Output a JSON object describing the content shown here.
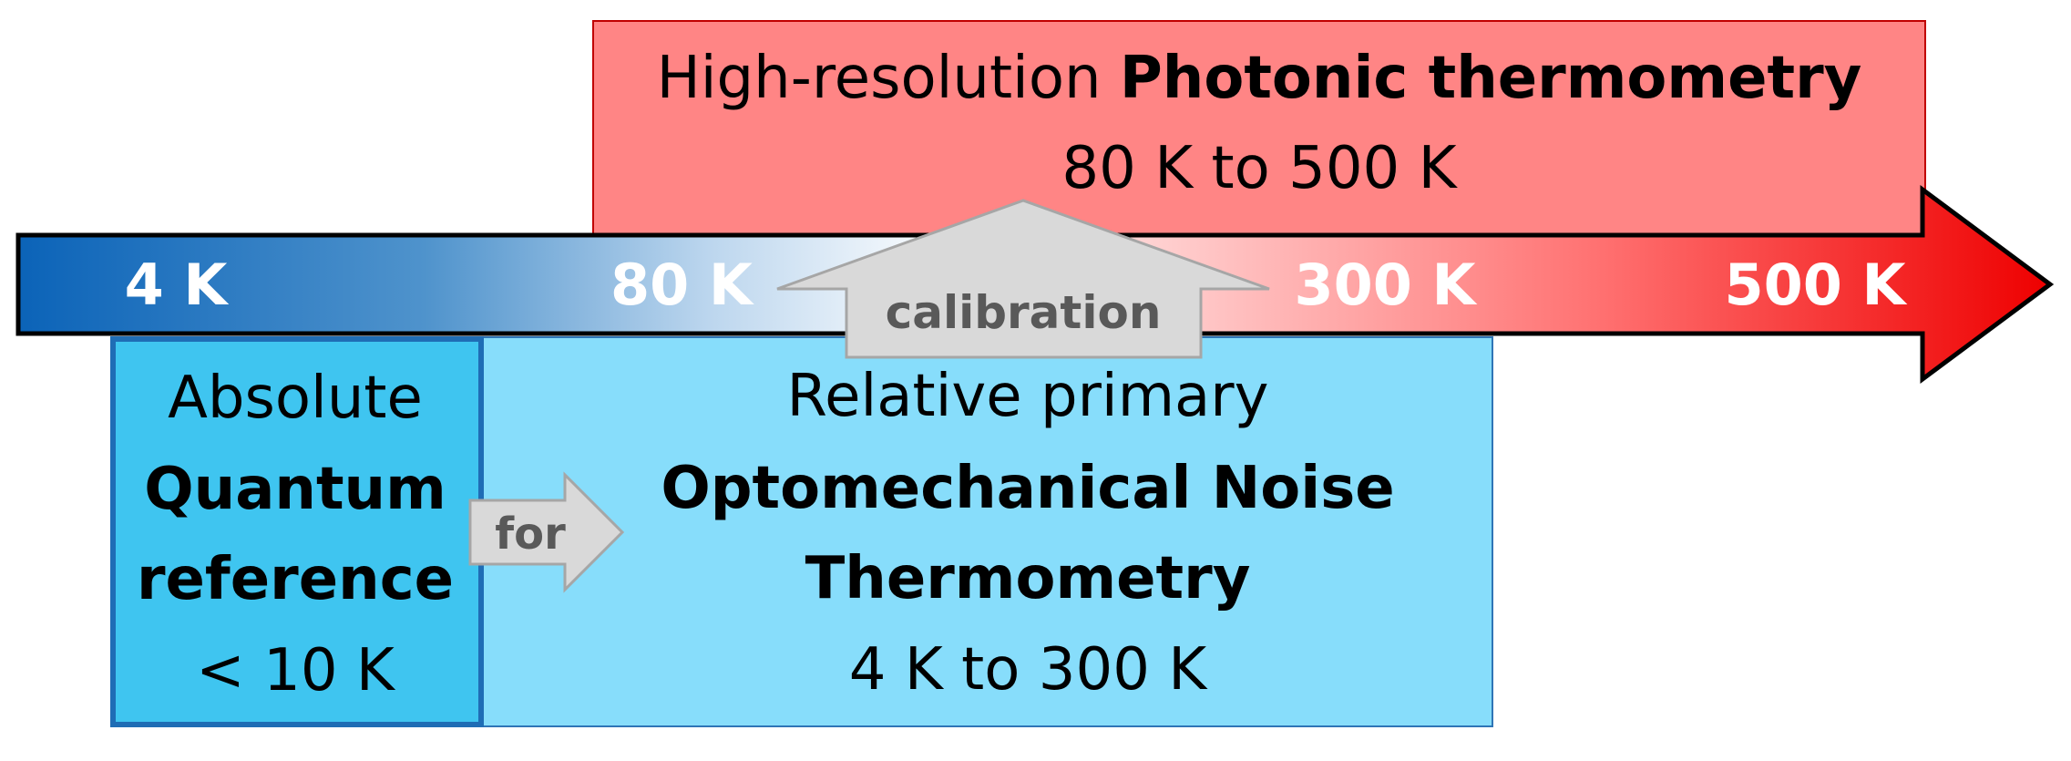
{
  "photonic": {
    "line1_regular": "High-resolution ",
    "line1_bold": "Photonic thermometry",
    "range": "80 K to 500 K"
  },
  "axis": {
    "ticks": [
      "4 K",
      "80 K",
      "300 K",
      "500 K"
    ]
  },
  "calibration_label": "calibration",
  "for_label": "for",
  "quantum": {
    "line1": "Absolute",
    "line2": "Quantum",
    "line3": "reference",
    "line4": "< 10 K"
  },
  "optomech": {
    "line1": "Relative primary",
    "line2": "Optomechanical Noise",
    "line3": "Thermometry",
    "line4": "4 K to 300 K"
  },
  "colors": {
    "photonic_fill": "#ff8585",
    "photonic_border": "#c00000",
    "optomech_fill": "#87ddfb",
    "optomech_border": "#2e75b6",
    "quantum_fill": "#3fc5f0",
    "quantum_border": "#1f6db5",
    "arrow_cold": "#0b63b8",
    "arrow_hot": "#ee0000",
    "callout_fill": "#d9d9d9",
    "callout_border": "#a6a6a6",
    "callout_text": "#595959"
  }
}
